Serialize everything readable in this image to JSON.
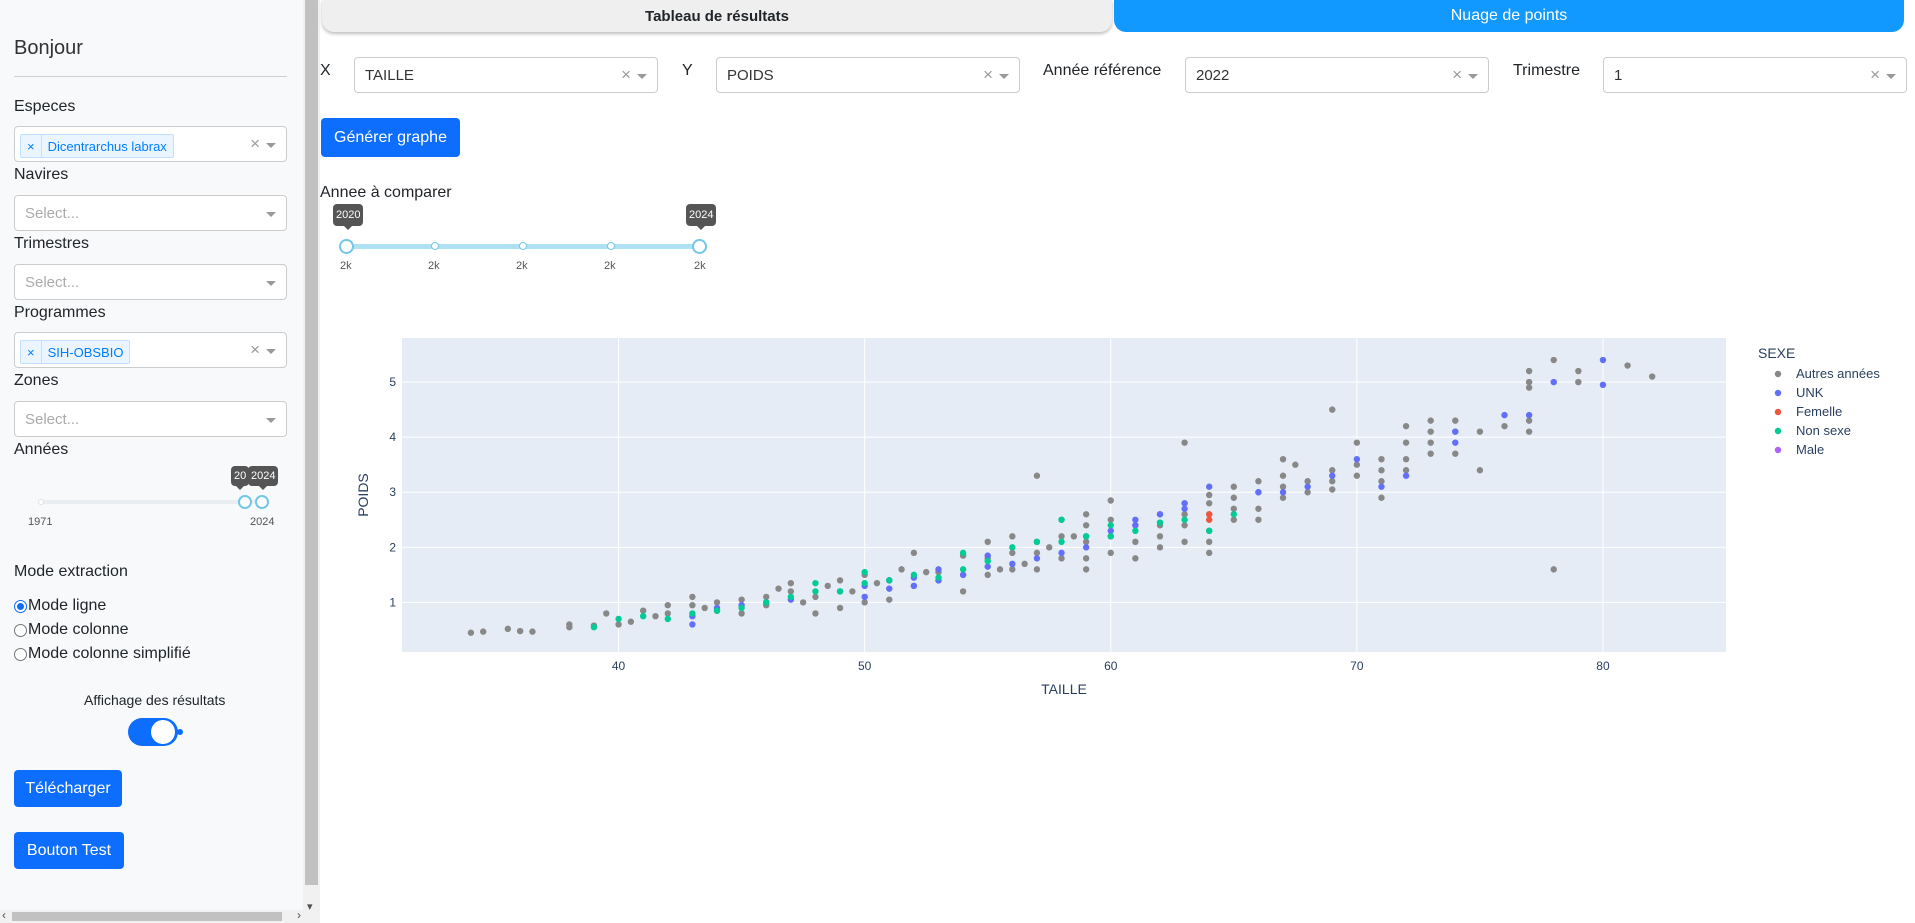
{
  "sidebar": {
    "greeting": "Bonjour",
    "especes": {
      "label": "Especes",
      "selected": "Dicentrarchus labrax"
    },
    "navires": {
      "label": "Navires",
      "placeholder": "Select..."
    },
    "trimestres": {
      "label": "Trimestres",
      "placeholder": "Select..."
    },
    "programmes": {
      "label": "Programmes",
      "selected": "SIH-OBSBIO"
    },
    "zones": {
      "label": "Zones",
      "placeholder": "Select..."
    },
    "annees": {
      "label": "Années",
      "min_mark": "1971",
      "max_mark": "2024",
      "tip_low": "20",
      "tip_high": "2024",
      "value_low": 2023,
      "value_high": 2024
    },
    "mode": {
      "label": "Mode extraction",
      "options": [
        "Mode ligne",
        "Mode colonne",
        "Mode colonne simplifié"
      ],
      "selected": "Mode ligne"
    },
    "affichage_label": "Affichage des résultats",
    "affichage_on": true,
    "download_label": "Télécharger",
    "test_label": "Bouton Test"
  },
  "tabs": [
    {
      "label": "Tableau de résultats",
      "active": false
    },
    {
      "label": "Nuage de points",
      "active": true
    }
  ],
  "controls": {
    "x_label": "X",
    "x_value": "TAILLE",
    "y_label": "Y",
    "y_value": "POIDS",
    "annee_label": "Année référence",
    "annee_value": "2022",
    "trimestre_label": "Trimestre",
    "trimestre_value": "1",
    "generate_label": "Générer graphe"
  },
  "compare": {
    "label": "Annee à comparer",
    "tip_low": "2020",
    "tip_high": "2024",
    "marks": [
      "2k",
      "2k",
      "2k",
      "2k",
      "2k"
    ]
  },
  "colors": {
    "primary": "#0d6efd",
    "tab_active": "#1199ff",
    "plot_bg": "#e5ecf6"
  },
  "chart_data": {
    "type": "scatter",
    "title": "",
    "xlabel": "TAILLE",
    "ylabel": "POIDS",
    "xlim": [
      31.2,
      85.0
    ],
    "ylim": [
      0.1,
      5.8
    ],
    "x_ticks": [
      40,
      50,
      60,
      70,
      80
    ],
    "y_ticks": [
      1,
      2,
      3,
      4,
      5
    ],
    "grid": true,
    "legend_title": "SEXE",
    "legend_position": "right",
    "series": [
      {
        "name": "Autres années",
        "color": "#888888",
        "points": [
          [
            34,
            0.45
          ],
          [
            34.5,
            0.47
          ],
          [
            35.5,
            0.52
          ],
          [
            36,
            0.48
          ],
          [
            36.5,
            0.47
          ],
          [
            38,
            0.55
          ],
          [
            38,
            0.6
          ],
          [
            39,
            0.58
          ],
          [
            39.5,
            0.8
          ],
          [
            40,
            0.6
          ],
          [
            40.5,
            0.65
          ],
          [
            41,
            0.85
          ],
          [
            41.5,
            0.75
          ],
          [
            42,
            0.95
          ],
          [
            42,
            0.8
          ],
          [
            43,
            1.1
          ],
          [
            43,
            0.95
          ],
          [
            43.5,
            0.9
          ],
          [
            44,
            1.0
          ],
          [
            44,
            0.85
          ],
          [
            45,
            1.05
          ],
          [
            45,
            0.8
          ],
          [
            46,
            1.1
          ],
          [
            46,
            0.95
          ],
          [
            46.5,
            1.25
          ],
          [
            47,
            1.35
          ],
          [
            47,
            1.2
          ],
          [
            47.5,
            1.0
          ],
          [
            48,
            1.1
          ],
          [
            48,
            0.8
          ],
          [
            48.5,
            1.3
          ],
          [
            49,
            1.4
          ],
          [
            49,
            0.9
          ],
          [
            49.5,
            1.2
          ],
          [
            50,
            1.5
          ],
          [
            50,
            1.1
          ],
          [
            50,
            1.0
          ],
          [
            50.5,
            1.35
          ],
          [
            51,
            1.4
          ],
          [
            51,
            1.05
          ],
          [
            51.5,
            1.6
          ],
          [
            52,
            1.9
          ],
          [
            52,
            1.3
          ],
          [
            52.5,
            1.55
          ],
          [
            53,
            1.55
          ],
          [
            53,
            1.4
          ],
          [
            54,
            1.85
          ],
          [
            54,
            1.5
          ],
          [
            54,
            1.2
          ],
          [
            55,
            2.1
          ],
          [
            55,
            1.8
          ],
          [
            55,
            1.5
          ],
          [
            55.5,
            1.6
          ],
          [
            56,
            2.2
          ],
          [
            56,
            1.9
          ],
          [
            56,
            1.6
          ],
          [
            56.5,
            1.7
          ],
          [
            57,
            3.3
          ],
          [
            57,
            2.1
          ],
          [
            57,
            1.9
          ],
          [
            57,
            1.6
          ],
          [
            57.5,
            2.0
          ],
          [
            58,
            2.5
          ],
          [
            58,
            2.2
          ],
          [
            58,
            1.8
          ],
          [
            58.5,
            2.2
          ],
          [
            59,
            2.6
          ],
          [
            59,
            2.4
          ],
          [
            59,
            2.1
          ],
          [
            59,
            1.8
          ],
          [
            59,
            1.6
          ],
          [
            60,
            2.85
          ],
          [
            60,
            2.5
          ],
          [
            60,
            2.2
          ],
          [
            60,
            1.9
          ],
          [
            61,
            2.4
          ],
          [
            61,
            2.1
          ],
          [
            61,
            1.8
          ],
          [
            62,
            2.6
          ],
          [
            62,
            2.4
          ],
          [
            62,
            2.2
          ],
          [
            62,
            2.0
          ],
          [
            63,
            3.9
          ],
          [
            63,
            2.8
          ],
          [
            63,
            2.6
          ],
          [
            63,
            2.4
          ],
          [
            63,
            2.1
          ],
          [
            64,
            2.8
          ],
          [
            64,
            2.6
          ],
          [
            64,
            2.3
          ],
          [
            64,
            2.1
          ],
          [
            64,
            1.9
          ],
          [
            64,
            2.95
          ],
          [
            65,
            3.1
          ],
          [
            65,
            2.9
          ],
          [
            65,
            2.7
          ],
          [
            65,
            2.5
          ],
          [
            66,
            3.2
          ],
          [
            66,
            3.0
          ],
          [
            66,
            2.7
          ],
          [
            66,
            2.5
          ],
          [
            67,
            3.6
          ],
          [
            67,
            3.3
          ],
          [
            67,
            3.1
          ],
          [
            67,
            2.9
          ],
          [
            67.5,
            3.5
          ],
          [
            68,
            3.0
          ],
          [
            68,
            3.2
          ],
          [
            69,
            4.5
          ],
          [
            69,
            3.4
          ],
          [
            69,
            3.2
          ],
          [
            69,
            3.05
          ],
          [
            70,
            3.9
          ],
          [
            70,
            3.5
          ],
          [
            70,
            3.3
          ],
          [
            71,
            3.6
          ],
          [
            71,
            3.4
          ],
          [
            71,
            3.2
          ],
          [
            71,
            2.9
          ],
          [
            72,
            4.2
          ],
          [
            72,
            3.9
          ],
          [
            72,
            3.6
          ],
          [
            72,
            3.4
          ],
          [
            73,
            4.3
          ],
          [
            73,
            4.1
          ],
          [
            73,
            3.9
          ],
          [
            73,
            3.7
          ],
          [
            74,
            4.3
          ],
          [
            74,
            4.1
          ],
          [
            74,
            3.7
          ],
          [
            75,
            4.1
          ],
          [
            75,
            3.4
          ],
          [
            76,
            4.2
          ],
          [
            77,
            5.2
          ],
          [
            77,
            5.0
          ],
          [
            77,
            4.9
          ],
          [
            77,
            4.3
          ],
          [
            77,
            4.1
          ],
          [
            78,
            5.4
          ],
          [
            78,
            1.6
          ],
          [
            79,
            5.2
          ],
          [
            79,
            5.0
          ],
          [
            81,
            5.3
          ],
          [
            82,
            5.1
          ]
        ]
      },
      {
        "name": "UNK",
        "color": "#636efa",
        "points": [
          [
            43,
            0.6
          ],
          [
            43,
            0.75
          ],
          [
            44,
            0.9
          ],
          [
            45,
            0.95
          ],
          [
            46,
            1.0
          ],
          [
            47,
            1.05
          ],
          [
            49,
            1.2
          ],
          [
            50,
            1.3
          ],
          [
            50,
            1.1
          ],
          [
            51,
            1.25
          ],
          [
            51,
            1.4
          ],
          [
            52,
            1.3
          ],
          [
            52,
            1.45
          ],
          [
            53,
            1.4
          ],
          [
            53,
            1.6
          ],
          [
            54,
            1.5
          ],
          [
            55,
            1.65
          ],
          [
            55,
            1.85
          ],
          [
            56,
            1.7
          ],
          [
            57,
            1.8
          ],
          [
            58,
            1.9
          ],
          [
            59,
            2.0
          ],
          [
            59,
            2.2
          ],
          [
            60,
            2.3
          ],
          [
            61,
            2.4
          ],
          [
            61,
            2.5
          ],
          [
            62,
            2.6
          ],
          [
            63,
            2.7
          ],
          [
            63,
            2.8
          ],
          [
            64,
            3.1
          ],
          [
            66,
            3.0
          ],
          [
            67,
            3.0
          ],
          [
            68,
            3.1
          ],
          [
            69,
            3.3
          ],
          [
            70,
            3.6
          ],
          [
            71,
            3.1
          ],
          [
            72,
            3.3
          ],
          [
            74,
            3.9
          ],
          [
            74,
            4.1
          ],
          [
            76,
            4.4
          ],
          [
            77,
            4.4
          ],
          [
            78,
            5.0
          ],
          [
            80,
            5.4
          ],
          [
            80,
            4.95
          ]
        ]
      },
      {
        "name": "Femelle",
        "color": "#ef553b",
        "points": [
          [
            64,
            2.5
          ],
          [
            64,
            2.6
          ]
        ]
      },
      {
        "name": "Non sexe",
        "color": "#00cc96",
        "points": [
          [
            39,
            0.55
          ],
          [
            40,
            0.7
          ],
          [
            41,
            0.75
          ],
          [
            42,
            0.7
          ],
          [
            43,
            0.8
          ],
          [
            44,
            0.85
          ],
          [
            45,
            0.9
          ],
          [
            46,
            1.0
          ],
          [
            47,
            1.1
          ],
          [
            48,
            1.2
          ],
          [
            48,
            1.35
          ],
          [
            49,
            1.2
          ],
          [
            50,
            1.35
          ],
          [
            50,
            1.55
          ],
          [
            51,
            1.4
          ],
          [
            52,
            1.5
          ],
          [
            53,
            1.45
          ],
          [
            54,
            1.6
          ],
          [
            54,
            1.9
          ],
          [
            55,
            1.75
          ],
          [
            56,
            2.0
          ],
          [
            57,
            2.1
          ],
          [
            58,
            2.5
          ],
          [
            58,
            2.1
          ],
          [
            59,
            2.2
          ],
          [
            60,
            2.2
          ],
          [
            60,
            2.4
          ],
          [
            61,
            2.3
          ],
          [
            62,
            2.45
          ],
          [
            63,
            2.5
          ],
          [
            64,
            2.3
          ],
          [
            65,
            2.6
          ]
        ]
      },
      {
        "name": "Male",
        "color": "#ab63fa",
        "points": []
      }
    ]
  }
}
